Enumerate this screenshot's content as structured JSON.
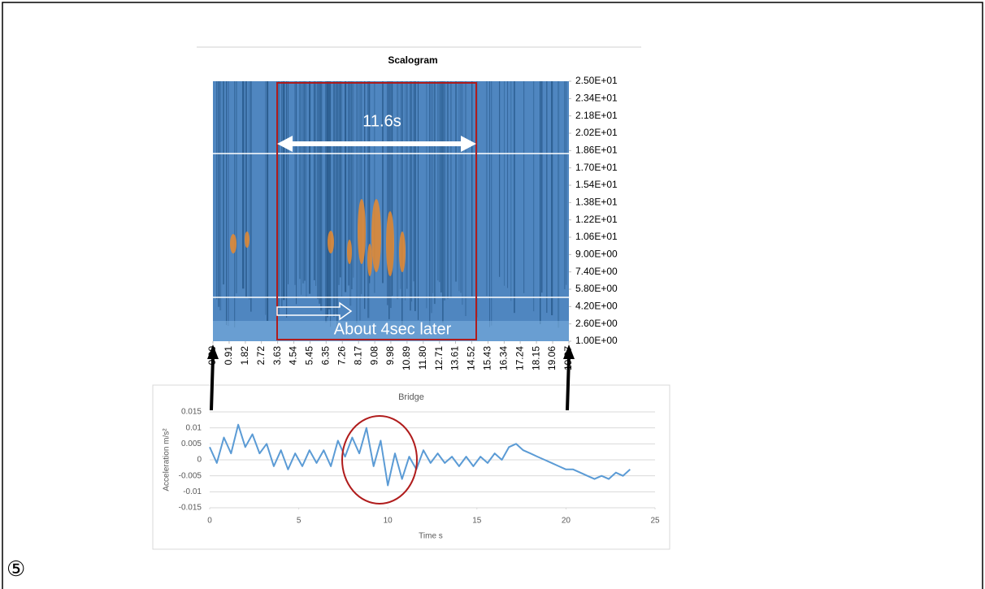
{
  "figure_label": "⑤",
  "chart_data": [
    {
      "type": "heatmap",
      "title": "Scalogram",
      "annotations": [
        "11.6s",
        "About 4sec later"
      ],
      "xlim": [
        0,
        19.97
      ],
      "xticks": [
        {
          "value": 0,
          "label": "0.00"
        },
        0.91,
        1.82,
        2.72,
        3.63,
        4.54,
        5.45,
        6.35,
        7.26,
        8.17,
        9.08,
        9.98,
        10.89,
        {
          "value": 11.8,
          "label": "11.80"
        },
        12.71,
        13.61,
        14.52,
        15.43,
        16.34,
        17.24,
        18.15,
        19.06,
        19.97
      ],
      "ylim": [
        1,
        25
      ],
      "yticks": [
        {
          "value": 25,
          "label": "2.50E+01"
        },
        {
          "value": 23.4,
          "label": "2.34E+01"
        },
        {
          "value": 21.8,
          "label": "2.18E+01"
        },
        {
          "value": 20.2,
          "label": "2.02E+01"
        },
        {
          "value": 18.6,
          "label": "1.86E+01"
        },
        {
          "value": 17,
          "label": "1.70E+01"
        },
        {
          "value": 15.4,
          "label": "1.54E+01"
        },
        {
          "value": 13.8,
          "label": "1.38E+01"
        },
        {
          "value": 12.2,
          "label": "1.22E+01"
        },
        {
          "value": 10.6,
          "label": "1.06E+01"
        },
        {
          "value": 9,
          "label": "9.00E+00"
        },
        {
          "value": 7.4,
          "label": "7.40E+00"
        },
        {
          "value": 5.8,
          "label": "5.80E+00"
        },
        {
          "value": 4.2,
          "label": "4.20E+00"
        },
        {
          "value": 2.6,
          "label": "2.60E+00"
        },
        {
          "value": 1,
          "label": "1.00E+00"
        }
      ]
    },
    {
      "type": "line",
      "title": "Bridge",
      "xlabel": "Time s",
      "ylabel": "Acceleration m/s²",
      "color": "#5b9bd5",
      "grid": true,
      "xlim": [
        0,
        25
      ],
      "xticks": [
        0,
        5,
        10,
        15,
        20,
        25
      ],
      "ylim": [
        -0.015,
        0.015
      ],
      "yticks": [
        0.015,
        0.01,
        0.005,
        0,
        -0.005,
        -0.01,
        -0.015
      ],
      "x": [
        0,
        0.4,
        0.8,
        1.2,
        1.6,
        2.0,
        2.4,
        2.8,
        3.2,
        3.6,
        4.0,
        4.4,
        4.8,
        5.2,
        5.6,
        6.0,
        6.4,
        6.8,
        7.2,
        7.6,
        8.0,
        8.4,
        8.8,
        9.2,
        9.6,
        10.0,
        10.4,
        10.8,
        11.2,
        11.6,
        12.0,
        12.4,
        12.8,
        13.2,
        13.6,
        14.0,
        14.4,
        14.8,
        15.2,
        15.6,
        16.0,
        16.4,
        16.8,
        17.2,
        17.6,
        18.0,
        18.4,
        18.8,
        19.2,
        19.6,
        20.0,
        20.4,
        20.8,
        21.2,
        21.6,
        22.0,
        22.4,
        22.8,
        23.2,
        23.6
      ],
      "values": [
        0.004,
        -0.001,
        0.007,
        0.002,
        0.011,
        0.004,
        0.008,
        0.002,
        0.005,
        -0.002,
        0.003,
        -0.003,
        0.002,
        -0.002,
        0.003,
        -0.001,
        0.003,
        -0.002,
        0.006,
        0.001,
        0.007,
        0.002,
        0.01,
        -0.002,
        0.006,
        -0.008,
        0.002,
        -0.006,
        0.001,
        -0.003,
        0.003,
        -0.001,
        0.002,
        -0.001,
        0.001,
        -0.002,
        0.001,
        -0.002,
        0.001,
        -0.001,
        0.002,
        0,
        0.004,
        0.005,
        0.003,
        0.002,
        0.001,
        0,
        -0.001,
        -0.002,
        -0.003,
        -0.003,
        -0.004,
        -0.005,
        -0.006,
        -0.005,
        -0.006,
        -0.004,
        -0.005,
        -0.003
      ]
    }
  ]
}
